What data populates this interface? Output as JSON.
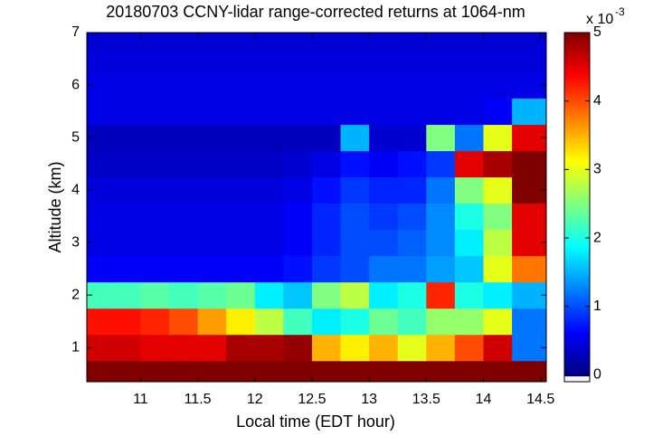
{
  "chart_data": {
    "type": "heatmap",
    "title": "20180703 CCNY-lidar range-corrected returns at 1064-nm",
    "x_label": "Local time (EDT hour)",
    "y_label": "Altitude (km)",
    "colorbar_exponent": {
      "base": "x 10",
      "power": "-3"
    },
    "xlim": [
      10.53,
      14.55
    ],
    "ylim": [
      0.35,
      7
    ],
    "xticks": [
      11,
      11.5,
      12,
      12.5,
      13,
      13.5,
      14,
      14.5
    ],
    "yticks": [
      1,
      2,
      3,
      4,
      5,
      6,
      7
    ],
    "clim": [
      -0.1,
      5
    ],
    "cticks": [
      0,
      1,
      2,
      3,
      4,
      5
    ],
    "colormap": "jet",
    "x_bins": [
      10.53,
      10.75,
      11,
      11.25,
      11.5,
      11.75,
      12,
      12.25,
      12.5,
      12.75,
      13,
      13.25,
      13.5,
      13.75,
      14,
      14.25,
      14.55
    ],
    "y_bins": [
      0.35,
      0.75,
      1.25,
      1.75,
      2.25,
      2.75,
      3.25,
      3.75,
      4.25,
      4.75,
      5.25,
      5.75,
      6.25,
      6.75,
      7
    ],
    "z": [
      [
        5,
        5,
        5,
        5,
        5,
        5,
        5,
        5,
        5,
        5,
        5,
        5,
        5,
        5,
        5,
        5
      ],
      [
        4.6,
        4.6,
        4.5,
        4.5,
        4.5,
        4.8,
        4.8,
        4.9,
        3.5,
        3.2,
        3.5,
        3.0,
        3.5,
        4.0,
        4.6,
        1.2
      ],
      [
        4.3,
        4.3,
        4.2,
        4.0,
        3.6,
        3.2,
        2.8,
        2.2,
        1.8,
        2.0,
        2.4,
        2.2,
        2.6,
        2.6,
        3.0,
        1.2
      ],
      [
        2.2,
        2.2,
        2.3,
        2.2,
        2.3,
        2.4,
        1.8,
        1.6,
        2.5,
        2.8,
        1.8,
        2.0,
        4.2,
        2.0,
        1.8,
        1.5
      ],
      [
        0.6,
        0.6,
        0.6,
        0.6,
        0.6,
        0.6,
        0.6,
        0.7,
        0.9,
        1.0,
        1.2,
        1.2,
        1.4,
        1.6,
        3.0,
        3.8
      ],
      [
        0.5,
        0.5,
        0.5,
        0.5,
        0.5,
        0.5,
        0.5,
        0.6,
        0.8,
        1.0,
        1.0,
        1.1,
        1.3,
        1.8,
        2.8,
        4.5
      ],
      [
        0.5,
        0.5,
        0.5,
        0.5,
        0.5,
        0.5,
        0.5,
        0.6,
        0.8,
        1.0,
        0.9,
        1.0,
        1.3,
        2.0,
        2.5,
        4.5
      ],
      [
        0.45,
        0.45,
        0.45,
        0.45,
        0.45,
        0.45,
        0.45,
        0.5,
        0.7,
        0.9,
        0.8,
        0.8,
        1.2,
        2.5,
        3.0,
        5
      ],
      [
        0.35,
        0.35,
        0.35,
        0.35,
        0.35,
        0.35,
        0.35,
        0.4,
        0.5,
        0.7,
        0.6,
        0.7,
        0.9,
        4.5,
        4.8,
        5
      ],
      [
        0.3,
        0.3,
        0.3,
        0.3,
        0.3,
        0.3,
        0.3,
        0.3,
        0.3,
        1.5,
        0.4,
        0.4,
        2.5,
        1.2,
        3.0,
        4.5
      ],
      [
        0.5,
        0.5,
        0.5,
        0.5,
        0.5,
        0.5,
        0.5,
        0.5,
        0.5,
        0.5,
        0.5,
        0.5,
        0.5,
        0.5,
        0.6,
        1.5
      ],
      [
        0.5,
        0.5,
        0.5,
        0.5,
        0.5,
        0.5,
        0.5,
        0.5,
        0.5,
        0.5,
        0.5,
        0.5,
        0.5,
        0.5,
        0.5,
        0.5
      ],
      [
        0.45,
        0.45,
        0.45,
        0.45,
        0.45,
        0.45,
        0.45,
        0.45,
        0.45,
        0.45,
        0.45,
        0.45,
        0.45,
        0.45,
        0.45,
        0.45
      ],
      [
        0.4,
        0.4,
        0.4,
        0.4,
        0.4,
        0.4,
        0.4,
        0.4,
        0.4,
        0.4,
        0.4,
        0.4,
        0.4,
        0.4,
        0.4,
        0.4
      ]
    ]
  }
}
